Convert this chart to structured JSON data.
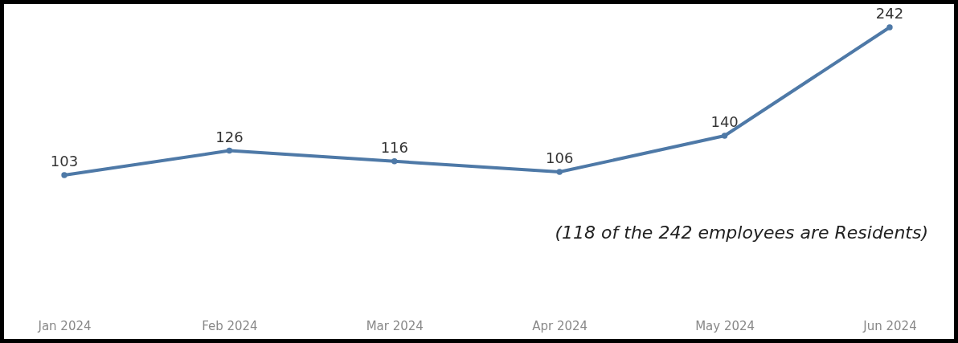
{
  "chart_data": {
    "type": "line",
    "categories": [
      "Jan 2024",
      "Feb 2024",
      "Mar 2024",
      "Apr 2024",
      "May 2024",
      "Jun 2024"
    ],
    "series": [
      {
        "color": "#4e79a7",
        "values": [
          103,
          126,
          116,
          106,
          140,
          242
        ]
      }
    ],
    "data_labels": true,
    "marker": "circle",
    "grid": false,
    "legend": false,
    "annotations": [
      "(118 of the 242 employees are Residents)"
    ]
  }
}
